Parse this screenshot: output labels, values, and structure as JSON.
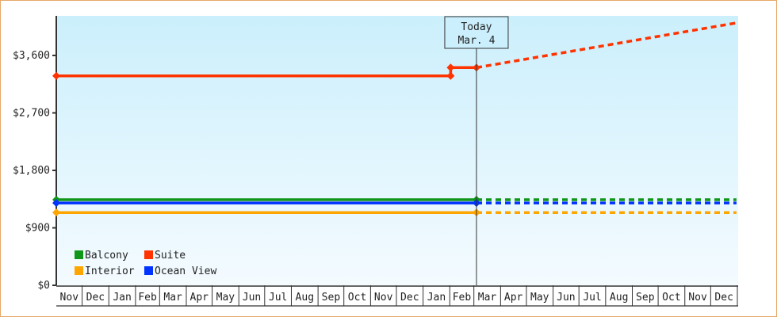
{
  "chart_data": {
    "type": "line",
    "title": "",
    "xlabel": "",
    "ylabel": "",
    "ylim": [
      0,
      4220
    ],
    "yticks": [
      0,
      900,
      1800,
      2700,
      3600
    ],
    "ytick_labels": [
      "$0",
      "$900",
      "$1,800",
      "$2,700",
      "$3,600"
    ],
    "categories": [
      "Nov",
      "Dec",
      "Jan",
      "Feb",
      "Mar",
      "Apr",
      "May",
      "Jun",
      "Jul",
      "Aug",
      "Sep",
      "Oct",
      "Nov",
      "Dec",
      "Jan",
      "Feb",
      "Mar",
      "Apr",
      "May",
      "Jun",
      "Jul",
      "Aug",
      "Sep",
      "Oct",
      "Nov",
      "Dec"
    ],
    "today": {
      "label": "Today",
      "date_label": "Mar. 4",
      "month": 16,
      "day": 4
    },
    "legend_position": "bottom-left",
    "grid": false,
    "series": [
      {
        "name": "Balcony",
        "color": "#109618",
        "actual": [
          {
            "month": 0,
            "day": 1,
            "value": 1340
          },
          {
            "month": 16,
            "day": 4,
            "value": 1340
          }
        ],
        "forecast": [
          {
            "month": 16,
            "day": 4,
            "value": 1340
          },
          {
            "month": 25,
            "day": 31,
            "value": 1340
          }
        ]
      },
      {
        "name": "Suite",
        "color": "#ff3300",
        "actual": [
          {
            "month": 0,
            "day": 1,
            "value": 3280
          },
          {
            "month": 15,
            "day": 2,
            "value": 3280
          },
          {
            "month": 15,
            "day": 2,
            "value": 3410
          },
          {
            "month": 16,
            "day": 4,
            "value": 3410
          }
        ],
        "forecast": [
          {
            "month": 16,
            "day": 4,
            "value": 3410
          },
          {
            "month": 25,
            "day": 31,
            "value": 4110
          }
        ]
      },
      {
        "name": "Interior",
        "color": "#ffa500",
        "actual": [
          {
            "month": 0,
            "day": 1,
            "value": 1140
          },
          {
            "month": 16,
            "day": 4,
            "value": 1140
          }
        ],
        "forecast": [
          {
            "month": 16,
            "day": 4,
            "value": 1140
          },
          {
            "month": 25,
            "day": 31,
            "value": 1140
          }
        ]
      },
      {
        "name": "Ocean View",
        "color": "#0033ff",
        "actual": [
          {
            "month": 0,
            "day": 1,
            "value": 1290
          },
          {
            "month": 16,
            "day": 4,
            "value": 1290
          }
        ],
        "forecast": [
          {
            "month": 16,
            "day": 4,
            "value": 1290
          },
          {
            "month": 25,
            "day": 31,
            "value": 1290
          }
        ]
      }
    ]
  }
}
